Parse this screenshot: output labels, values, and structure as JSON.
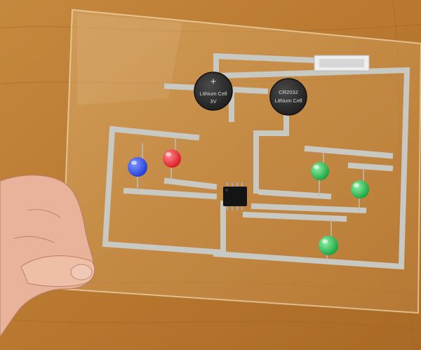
{
  "photo": {
    "colors": {
      "table_wood": "#c98a3c",
      "acrylic_sheet": "#d9a560",
      "copper_tape": "#c6c6c0",
      "coin_cell": "#2c2c2c",
      "chip": "#151515",
      "skin": "#e8b39a"
    },
    "batteries": [
      {
        "symbol": "+",
        "type_label": "Lithium Cell",
        "voltage_label": "3V"
      },
      {
        "model_label": "CR2032",
        "type_label": "Lithium Cell"
      }
    ],
    "components": {
      "leds": [
        {
          "color_name": "blue",
          "hex": "#1f3bd6"
        },
        {
          "color_name": "red",
          "hex": "#e3202a"
        },
        {
          "color_name": "green",
          "hex": "#22b14c"
        },
        {
          "color_name": "green",
          "hex": "#22b14c"
        },
        {
          "color_name": "green",
          "hex": "#22b14c"
        }
      ],
      "chip": {
        "package": "8-pin DIP"
      },
      "switch": {
        "kind": "slide switch"
      }
    }
  }
}
